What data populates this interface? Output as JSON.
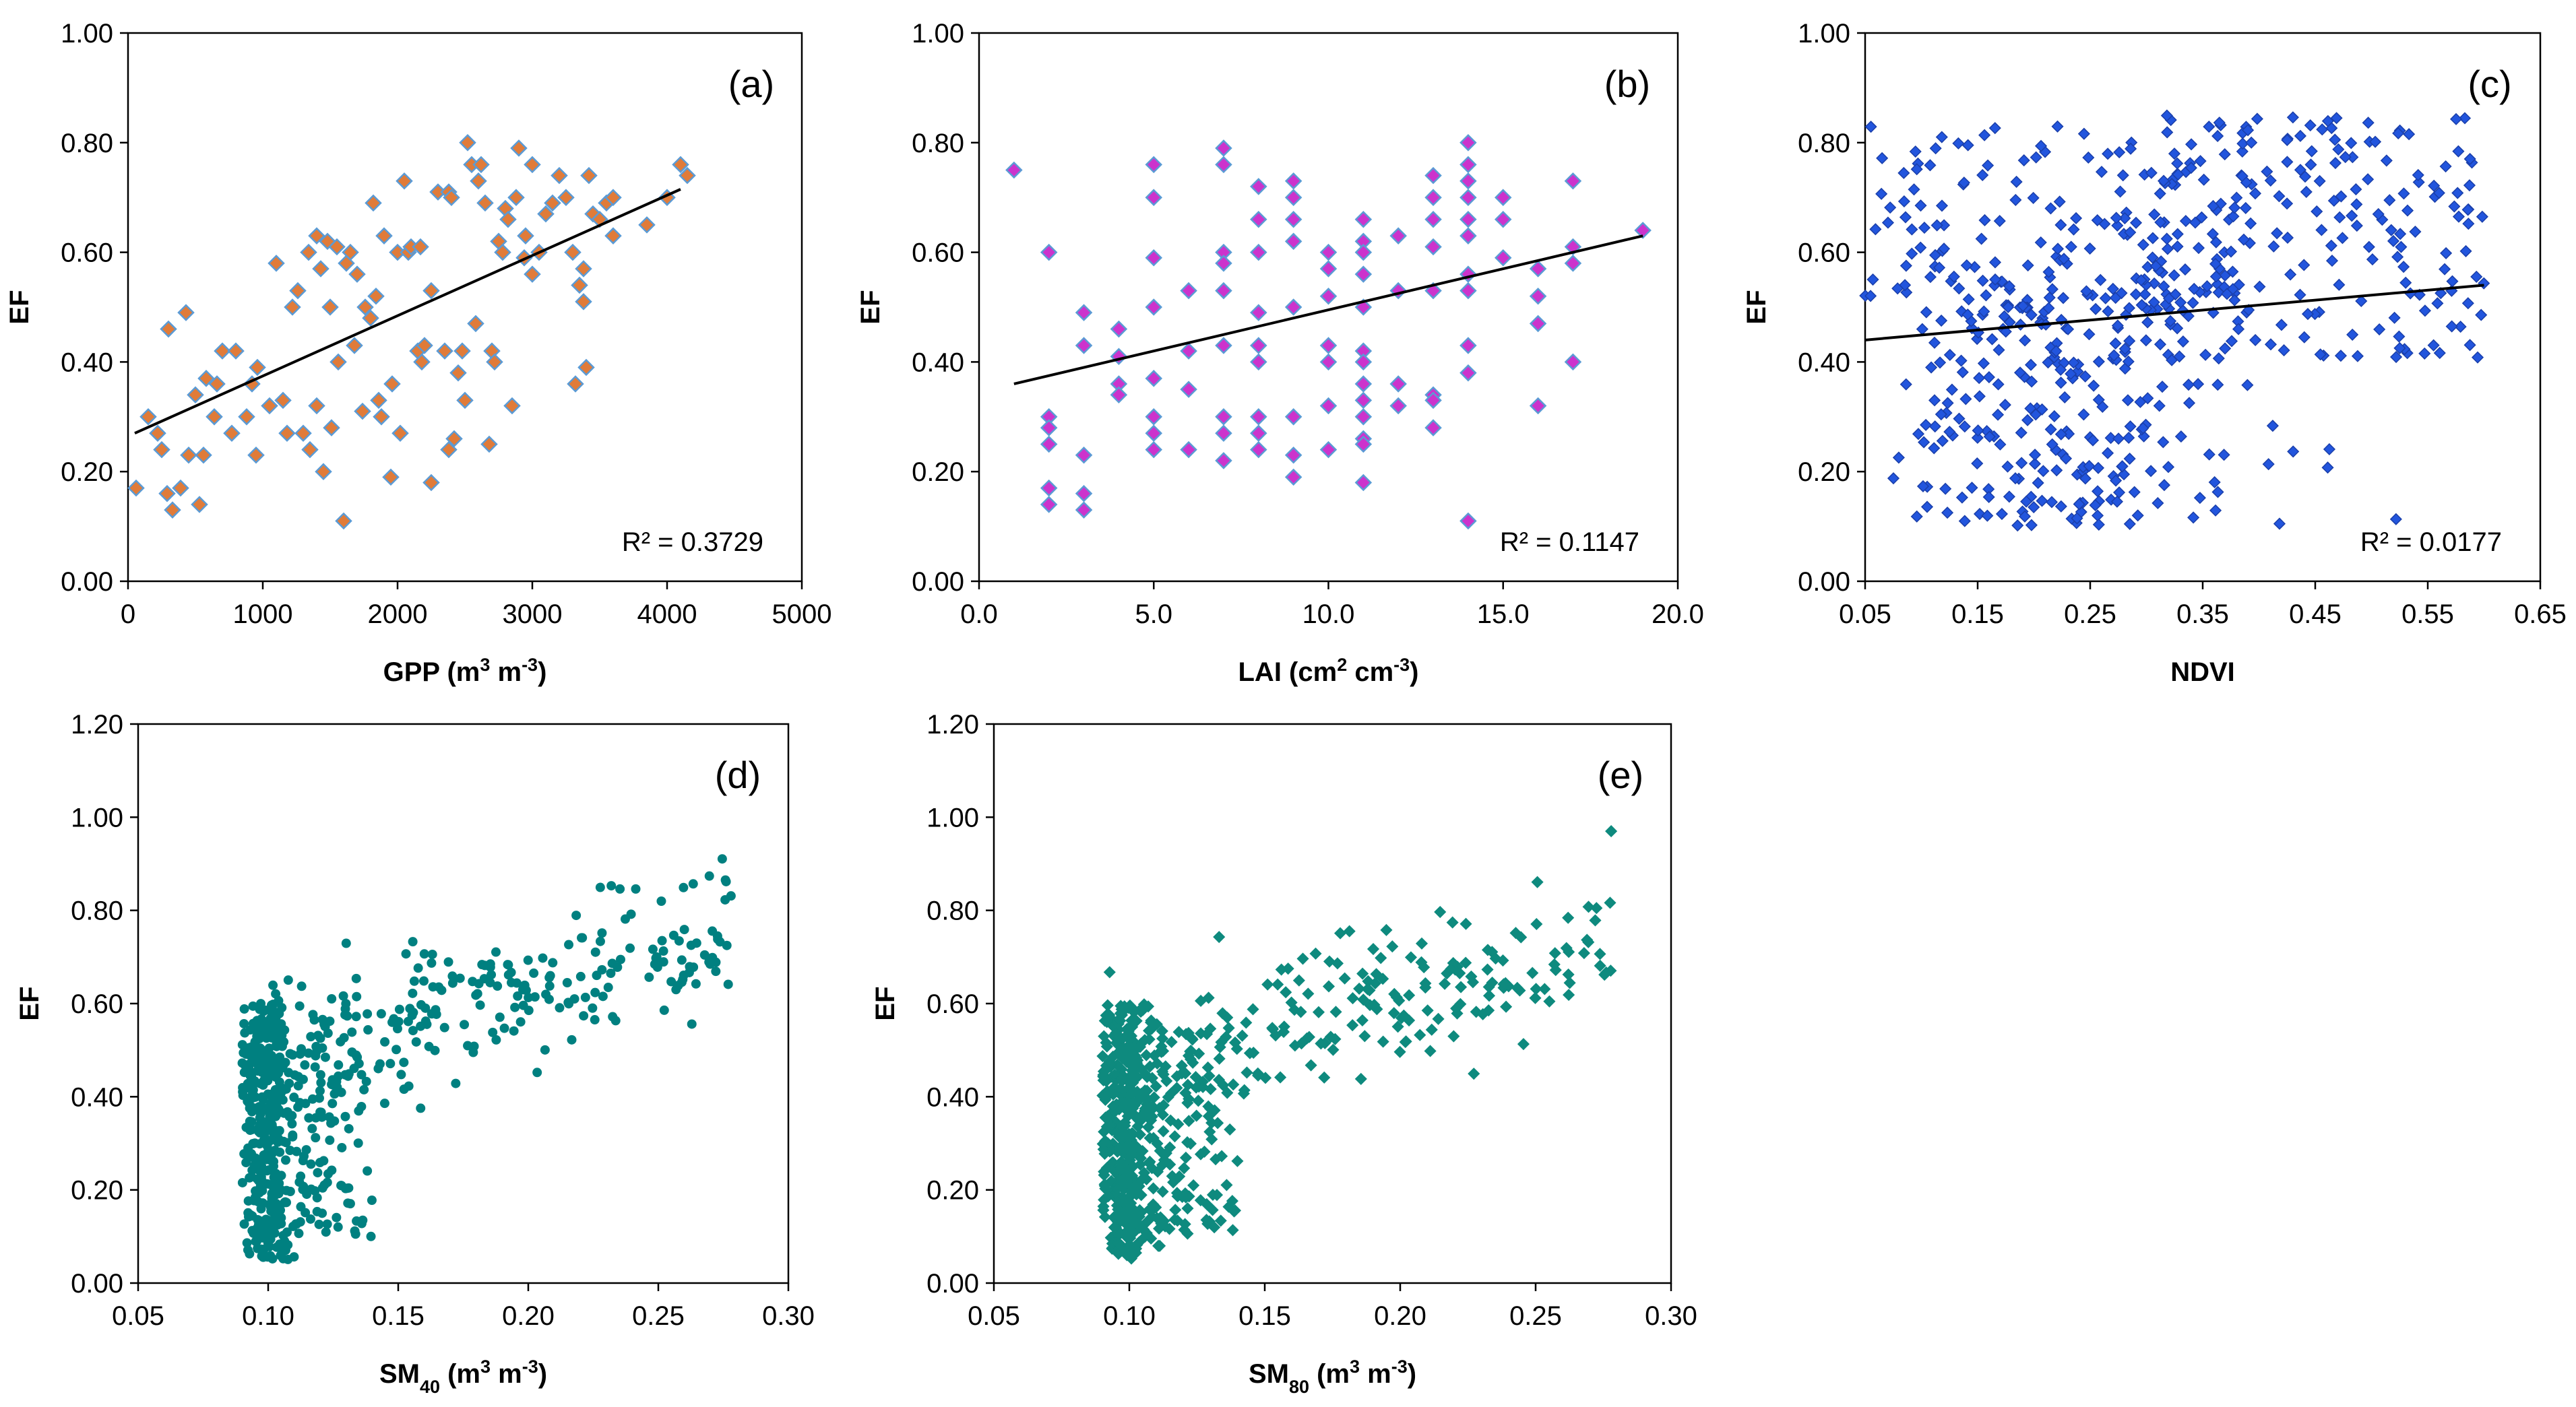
{
  "figure": {
    "description_free": true
  },
  "chart_data": [
    {
      "id": "a",
      "panel_label": "(a)",
      "type": "scatter",
      "xlabel_parts": [
        [
          "GPP (m",
          "normal"
        ],
        [
          "3",
          "sup"
        ],
        [
          " m",
          "normal"
        ],
        [
          "-3",
          "sup"
        ],
        [
          ")",
          "normal"
        ]
      ],
      "ylabel": "EF",
      "xlim": [
        0,
        5000
      ],
      "ylim": [
        0,
        1.0
      ],
      "xticks": [
        0,
        1000,
        2000,
        3000,
        4000,
        5000
      ],
      "xtick_labels": [
        "0",
        "1000",
        "2000",
        "3000",
        "4000",
        "5000"
      ],
      "yticks": [
        0,
        0.2,
        0.4,
        0.6,
        0.8,
        1.0
      ],
      "ytick_labels": [
        "0.00",
        "0.20",
        "0.40",
        "0.60",
        "0.80",
        "1.00"
      ],
      "marker": "diamond",
      "marker_fill": "#E07B39",
      "marker_stroke": "#5B9BD5",
      "trendline": {
        "x": [
          50,
          4100
        ],
        "y": [
          0.27,
          0.715
        ]
      },
      "r2_label": "R² = 0.3729",
      "points": [
        [
          60,
          0.17
        ],
        [
          150,
          0.3
        ],
        [
          220,
          0.27
        ],
        [
          250,
          0.24
        ],
        [
          290,
          0.16
        ],
        [
          300,
          0.46
        ],
        [
          330,
          0.13
        ],
        [
          390,
          0.17
        ],
        [
          430,
          0.49
        ],
        [
          450,
          0.23
        ],
        [
          500,
          0.34
        ],
        [
          530,
          0.14
        ],
        [
          560,
          0.23
        ],
        [
          580,
          0.37
        ],
        [
          640,
          0.3
        ],
        [
          660,
          0.36
        ],
        [
          700,
          0.42
        ],
        [
          770,
          0.27
        ],
        [
          800,
          0.42
        ],
        [
          880,
          0.3
        ],
        [
          920,
          0.36
        ],
        [
          960,
          0.39
        ],
        [
          950,
          0.23
        ],
        [
          1050,
          0.32
        ],
        [
          1100,
          0.58
        ],
        [
          1150,
          0.33
        ],
        [
          1180,
          0.27
        ],
        [
          1220,
          0.5
        ],
        [
          1260,
          0.53
        ],
        [
          1300,
          0.27
        ],
        [
          1340,
          0.6
        ],
        [
          1350,
          0.24
        ],
        [
          1400,
          0.63
        ],
        [
          1400,
          0.32
        ],
        [
          1430,
          0.57
        ],
        [
          1450,
          0.2
        ],
        [
          1480,
          0.62
        ],
        [
          1500,
          0.5
        ],
        [
          1510,
          0.28
        ],
        [
          1550,
          0.61
        ],
        [
          1560,
          0.4
        ],
        [
          1600,
          0.11
        ],
        [
          1620,
          0.58
        ],
        [
          1650,
          0.6
        ],
        [
          1680,
          0.43
        ],
        [
          1700,
          0.56
        ],
        [
          1740,
          0.31
        ],
        [
          1760,
          0.5
        ],
        [
          1800,
          0.48
        ],
        [
          1820,
          0.69
        ],
        [
          1840,
          0.52
        ],
        [
          1860,
          0.33
        ],
        [
          1880,
          0.3
        ],
        [
          1900,
          0.63
        ],
        [
          1950,
          0.19
        ],
        [
          1960,
          0.36
        ],
        [
          2000,
          0.6
        ],
        [
          2020,
          0.27
        ],
        [
          2050,
          0.73
        ],
        [
          2080,
          0.6
        ],
        [
          2100,
          0.61
        ],
        [
          2150,
          0.42
        ],
        [
          2170,
          0.61
        ],
        [
          2180,
          0.4
        ],
        [
          2200,
          0.43
        ],
        [
          2250,
          0.18
        ],
        [
          2250,
          0.53
        ],
        [
          2300,
          0.71
        ],
        [
          2350,
          0.42
        ],
        [
          2380,
          0.71
        ],
        [
          2380,
          0.24
        ],
        [
          2400,
          0.7
        ],
        [
          2420,
          0.26
        ],
        [
          2450,
          0.38
        ],
        [
          2480,
          0.42
        ],
        [
          2500,
          0.33
        ],
        [
          2520,
          0.8
        ],
        [
          2550,
          0.76
        ],
        [
          2580,
          0.47
        ],
        [
          2600,
          0.73
        ],
        [
          2620,
          0.76
        ],
        [
          2650,
          0.69
        ],
        [
          2680,
          0.25
        ],
        [
          2700,
          0.42
        ],
        [
          2720,
          0.4
        ],
        [
          2750,
          0.62
        ],
        [
          2780,
          0.6
        ],
        [
          2800,
          0.68
        ],
        [
          2820,
          0.66
        ],
        [
          2850,
          0.32
        ],
        [
          2880,
          0.7
        ],
        [
          2900,
          0.79
        ],
        [
          2940,
          0.59
        ],
        [
          2950,
          0.63
        ],
        [
          3000,
          0.56
        ],
        [
          3000,
          0.76
        ],
        [
          3050,
          0.6
        ],
        [
          3100,
          0.67
        ],
        [
          3150,
          0.69
        ],
        [
          3200,
          0.74
        ],
        [
          3250,
          0.7
        ],
        [
          3300,
          0.6
        ],
        [
          3320,
          0.36
        ],
        [
          3350,
          0.54
        ],
        [
          3380,
          0.57
        ],
        [
          3380,
          0.51
        ],
        [
          3400,
          0.39
        ],
        [
          3420,
          0.74
        ],
        [
          3450,
          0.67
        ],
        [
          3500,
          0.66
        ],
        [
          3550,
          0.69
        ],
        [
          3600,
          0.63
        ],
        [
          3600,
          0.7
        ],
        [
          3850,
          0.65
        ],
        [
          4000,
          0.7
        ],
        [
          4100,
          0.76
        ],
        [
          4150,
          0.74
        ]
      ]
    },
    {
      "id": "b",
      "panel_label": "(b)",
      "type": "scatter",
      "xlabel_parts": [
        [
          "LAI (cm",
          "normal"
        ],
        [
          "2",
          "sup"
        ],
        [
          " cm",
          "normal"
        ],
        [
          "-3",
          "sup"
        ],
        [
          ")",
          "normal"
        ]
      ],
      "ylabel": "EF",
      "xlim": [
        0,
        20
      ],
      "ylim": [
        0,
        1.0
      ],
      "xticks": [
        0,
        5,
        10,
        15,
        20
      ],
      "xtick_labels": [
        "0.0",
        "5.0",
        "10.0",
        "15.0",
        "20.0"
      ],
      "yticks": [
        0,
        0.2,
        0.4,
        0.6,
        0.8,
        1.0
      ],
      "ytick_labels": [
        "0.00",
        "0.20",
        "0.40",
        "0.60",
        "0.80",
        "1.00"
      ],
      "marker": "diamond",
      "marker_fill": "#CC33CC",
      "marker_stroke": "#5B9BD5",
      "trendline": {
        "x": [
          1,
          19
        ],
        "y": [
          0.36,
          0.63
        ]
      },
      "r2_label": "R² = 0.1147",
      "points": [
        [
          1,
          0.75
        ],
        [
          2,
          0.6
        ],
        [
          2,
          0.3
        ],
        [
          2,
          0.28
        ],
        [
          2,
          0.25
        ],
        [
          2,
          0.17
        ],
        [
          2,
          0.14
        ],
        [
          3,
          0.49
        ],
        [
          3,
          0.43
        ],
        [
          3,
          0.23
        ],
        [
          3,
          0.16
        ],
        [
          3,
          0.13
        ],
        [
          4,
          0.46
        ],
        [
          4,
          0.41
        ],
        [
          4,
          0.36
        ],
        [
          4,
          0.34
        ],
        [
          5,
          0.76
        ],
        [
          5,
          0.7
        ],
        [
          5,
          0.59
        ],
        [
          5,
          0.5
        ],
        [
          5,
          0.37
        ],
        [
          5,
          0.3
        ],
        [
          5,
          0.27
        ],
        [
          5,
          0.24
        ],
        [
          6,
          0.53
        ],
        [
          6,
          0.42
        ],
        [
          6,
          0.35
        ],
        [
          6,
          0.24
        ],
        [
          7,
          0.79
        ],
        [
          7,
          0.76
        ],
        [
          7,
          0.6
        ],
        [
          7,
          0.58
        ],
        [
          7,
          0.53
        ],
        [
          7,
          0.43
        ],
        [
          7,
          0.3
        ],
        [
          7,
          0.27
        ],
        [
          7,
          0.22
        ],
        [
          8,
          0.72
        ],
        [
          8,
          0.66
        ],
        [
          8,
          0.6
        ],
        [
          8,
          0.49
        ],
        [
          8,
          0.43
        ],
        [
          8,
          0.4
        ],
        [
          8,
          0.3
        ],
        [
          8,
          0.27
        ],
        [
          8,
          0.24
        ],
        [
          9,
          0.73
        ],
        [
          9,
          0.7
        ],
        [
          9,
          0.66
        ],
        [
          9,
          0.62
        ],
        [
          9,
          0.5
        ],
        [
          9,
          0.3
        ],
        [
          9,
          0.23
        ],
        [
          9,
          0.19
        ],
        [
          10,
          0.6
        ],
        [
          10,
          0.57
        ],
        [
          10,
          0.52
        ],
        [
          10,
          0.43
        ],
        [
          10,
          0.4
        ],
        [
          10,
          0.32
        ],
        [
          10,
          0.24
        ],
        [
          11,
          0.66
        ],
        [
          11,
          0.62
        ],
        [
          11,
          0.6
        ],
        [
          11,
          0.56
        ],
        [
          11,
          0.5
        ],
        [
          11,
          0.42
        ],
        [
          11,
          0.4
        ],
        [
          11,
          0.36
        ],
        [
          11,
          0.33
        ],
        [
          11,
          0.3
        ],
        [
          11,
          0.26
        ],
        [
          11,
          0.25
        ],
        [
          11,
          0.18
        ],
        [
          12,
          0.63
        ],
        [
          12,
          0.53
        ],
        [
          12,
          0.36
        ],
        [
          12,
          0.32
        ],
        [
          13,
          0.74
        ],
        [
          13,
          0.7
        ],
        [
          13,
          0.66
        ],
        [
          13,
          0.61
        ],
        [
          13,
          0.53
        ],
        [
          13,
          0.34
        ],
        [
          13,
          0.33
        ],
        [
          13,
          0.28
        ],
        [
          14,
          0.8
        ],
        [
          14,
          0.76
        ],
        [
          14,
          0.73
        ],
        [
          14,
          0.7
        ],
        [
          14,
          0.66
        ],
        [
          14,
          0.63
        ],
        [
          14,
          0.56
        ],
        [
          14,
          0.53
        ],
        [
          14,
          0.43
        ],
        [
          14,
          0.38
        ],
        [
          14,
          0.11
        ],
        [
          15,
          0.7
        ],
        [
          15,
          0.66
        ],
        [
          15,
          0.59
        ],
        [
          16,
          0.57
        ],
        [
          16,
          0.52
        ],
        [
          16,
          0.47
        ],
        [
          16,
          0.32
        ],
        [
          17,
          0.73
        ],
        [
          17,
          0.61
        ],
        [
          17,
          0.58
        ],
        [
          17,
          0.4
        ],
        [
          19,
          0.64
        ]
      ]
    },
    {
      "id": "c",
      "panel_label": "(c)",
      "type": "scatter",
      "xlabel_parts": [
        [
          "NDVI",
          "normal"
        ]
      ],
      "ylabel": "EF",
      "xlim": [
        0.05,
        0.65
      ],
      "ylim": [
        0,
        1.0
      ],
      "xticks": [
        0.05,
        0.15,
        0.25,
        0.35,
        0.45,
        0.55,
        0.65
      ],
      "xtick_labels": [
        "0.05",
        "0.15",
        "0.25",
        "0.35",
        "0.45",
        "0.55",
        "0.65"
      ],
      "yticks": [
        0,
        0.2,
        0.4,
        0.6,
        0.8,
        1.0
      ],
      "ytick_labels": [
        "0.00",
        "0.20",
        "0.40",
        "0.60",
        "0.80",
        "1.00"
      ],
      "marker": "small-diamond",
      "marker_fill": "#2255DD",
      "marker_stroke": "#1A3FAA",
      "trendline": {
        "x": [
          0.05,
          0.6
        ],
        "y": [
          0.44,
          0.54
        ]
      },
      "r2_label": "R² = 0.0177",
      "generated": {
        "seed": 11,
        "n": 620,
        "kind": "ndvi"
      }
    },
    {
      "id": "d",
      "panel_label": "(d)",
      "type": "scatter",
      "xlabel_parts": [
        [
          "SM",
          "normal"
        ],
        [
          "40",
          "sub"
        ],
        [
          " (m",
          "normal"
        ],
        [
          "3",
          "sup"
        ],
        [
          " m",
          "normal"
        ],
        [
          "-3",
          "sup"
        ],
        [
          ")",
          "normal"
        ]
      ],
      "ylabel": "EF",
      "xlim": [
        0.05,
        0.3
      ],
      "ylim": [
        0,
        1.2
      ],
      "xticks": [
        0.05,
        0.1,
        0.15,
        0.2,
        0.25,
        0.3
      ],
      "xtick_labels": [
        "0.05",
        "0.10",
        "0.15",
        "0.20",
        "0.25",
        "0.30"
      ],
      "yticks": [
        0,
        0.2,
        0.4,
        0.6,
        0.8,
        1.0,
        1.2
      ],
      "ytick_labels": [
        "0.00",
        "0.20",
        "0.40",
        "0.60",
        "0.80",
        "1.00",
        "1.20"
      ],
      "marker": "circle",
      "marker_fill": "#008080",
      "marker_stroke": "#008080",
      "generated": {
        "seed": 23,
        "n": 720,
        "kind": "sm"
      }
    },
    {
      "id": "e",
      "panel_label": "(e)",
      "type": "scatter",
      "xlabel_parts": [
        [
          "SM",
          "normal"
        ],
        [
          "80",
          "sub"
        ],
        [
          " (m",
          "normal"
        ],
        [
          "3",
          "sup"
        ],
        [
          " m",
          "normal"
        ],
        [
          "-3",
          "sup"
        ],
        [
          ")",
          "normal"
        ]
      ],
      "ylabel": "EF",
      "xlim": [
        0.05,
        0.3
      ],
      "ylim": [
        0,
        1.2
      ],
      "xticks": [
        0.05,
        0.1,
        0.15,
        0.2,
        0.25,
        0.3
      ],
      "xtick_labels": [
        "0.05",
        "0.10",
        "0.15",
        "0.20",
        "0.25",
        "0.30"
      ],
      "yticks": [
        0,
        0.2,
        0.4,
        0.6,
        0.8,
        1.0,
        1.2
      ],
      "ytick_labels": [
        "0.00",
        "0.20",
        "0.40",
        "0.60",
        "0.80",
        "1.00",
        "1.20"
      ],
      "marker": "small-diamond",
      "marker_fill": "#0E8A7E",
      "marker_stroke": "#0E8A7E",
      "generated": {
        "seed": 37,
        "n": 720,
        "kind": "sm"
      }
    }
  ]
}
